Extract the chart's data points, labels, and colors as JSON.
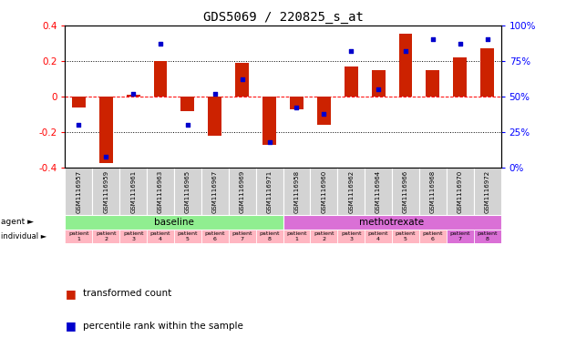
{
  "title": "GDS5069 / 220825_s_at",
  "samples": [
    "GSM1116957",
    "GSM1116959",
    "GSM1116961",
    "GSM1116963",
    "GSM1116965",
    "GSM1116967",
    "GSM1116969",
    "GSM1116971",
    "GSM1116958",
    "GSM1116960",
    "GSM1116962",
    "GSM1116964",
    "GSM1116966",
    "GSM1116968",
    "GSM1116970",
    "GSM1116972"
  ],
  "transformed_count": [
    -0.06,
    -0.37,
    0.01,
    0.2,
    -0.08,
    -0.22,
    0.19,
    -0.27,
    -0.07,
    -0.16,
    0.17,
    0.15,
    0.35,
    0.15,
    0.22,
    0.27
  ],
  "percentile_rank": [
    30,
    8,
    52,
    87,
    30,
    52,
    62,
    18,
    42,
    38,
    82,
    55,
    82,
    90,
    87,
    90
  ],
  "agent_labels": [
    "baseline",
    "methotrexate"
  ],
  "agent_colors": [
    "#90ee90",
    "#da70d6"
  ],
  "individual_labels": [
    "patient\n1",
    "patient\n2",
    "patient\n3",
    "patient\n4",
    "patient\n5",
    "patient\n6",
    "patient\n7",
    "patient\n8",
    "patient\n1",
    "patient\n2",
    "patient\n3",
    "patient\n4",
    "patient\n5",
    "patient\n6",
    "patient\n7",
    "patient\n8"
  ],
  "indiv_bg": [
    "#ffb6c1",
    "#ffb6c1",
    "#ffb6c1",
    "#ffb6c1",
    "#ffb6c1",
    "#ffb6c1",
    "#ffb6c1",
    "#ffb6c1",
    "#ffb6c1",
    "#ffb6c1",
    "#ffb6c1",
    "#ffb6c1",
    "#ffb6c1",
    "#ffb6c1",
    "#da70d6",
    "#da70d6"
  ],
  "bar_color": "#cc2200",
  "dot_color": "#0000cc",
  "ylim": [
    -0.4,
    0.4
  ],
  "yticks": [
    -0.4,
    -0.2,
    0.0,
    0.2,
    0.4
  ],
  "right_yticks": [
    0,
    25,
    50,
    75,
    100
  ],
  "right_ylabels": [
    "0%",
    "25%",
    "50%",
    "75%",
    "100%"
  ],
  "hlines_dotted": [
    0.2,
    -0.2
  ],
  "legend1": "transformed count",
  "legend2": "percentile rank within the sample"
}
